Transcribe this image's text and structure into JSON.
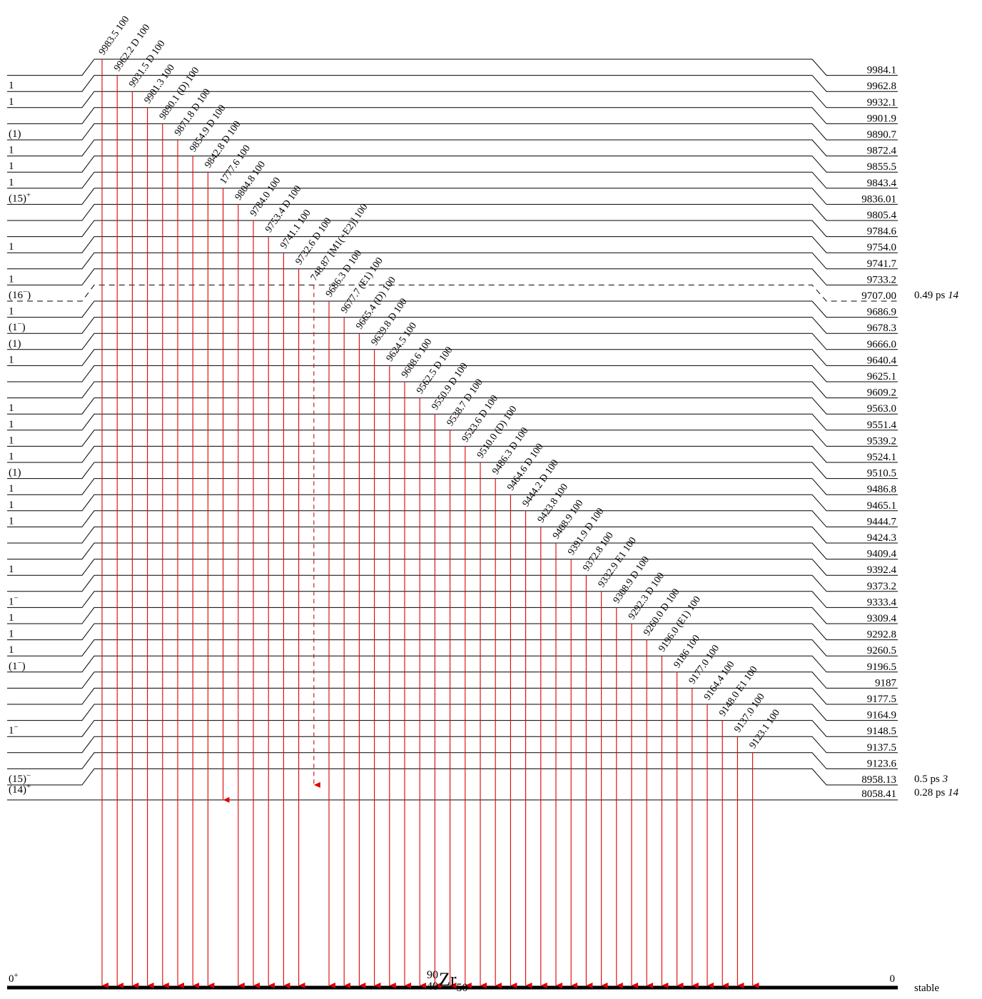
{
  "nuclide": {
    "mass": "90",
    "z": "40",
    "symbol": "Zr",
    "n": "50"
  },
  "levels": [
    {
      "energy": "9984.1",
      "spin": ""
    },
    {
      "energy": "9962.8",
      "spin": "1"
    },
    {
      "energy": "9932.1",
      "spin": "1"
    },
    {
      "energy": "9901.9",
      "spin": ""
    },
    {
      "energy": "9890.7",
      "spin": "(1)"
    },
    {
      "energy": "9872.4",
      "spin": "1"
    },
    {
      "energy": "9855.5",
      "spin": "1"
    },
    {
      "energy": "9843.4",
      "spin": "1"
    },
    {
      "energy": "9836.01",
      "spin": "(15)+"
    },
    {
      "energy": "9805.4",
      "spin": ""
    },
    {
      "energy": "9784.6",
      "spin": ""
    },
    {
      "energy": "9754.0",
      "spin": "1"
    },
    {
      "energy": "9741.7",
      "spin": ""
    },
    {
      "energy": "9733.2",
      "spin": "1"
    },
    {
      "energy": "9707.00",
      "spin": "(16−)",
      "halflife": "0.49 ps",
      "unc": "14",
      "dashed": true
    },
    {
      "energy": "9686.9",
      "spin": "1"
    },
    {
      "energy": "9678.3",
      "spin": "(1−)"
    },
    {
      "energy": "9666.0",
      "spin": "(1)"
    },
    {
      "energy": "9640.4",
      "spin": "1"
    },
    {
      "energy": "9625.1",
      "spin": ""
    },
    {
      "energy": "9609.2",
      "spin": ""
    },
    {
      "energy": "9563.0",
      "spin": "1"
    },
    {
      "energy": "9551.4",
      "spin": "1"
    },
    {
      "energy": "9539.2",
      "spin": "1"
    },
    {
      "energy": "9524.1",
      "spin": "1"
    },
    {
      "energy": "9510.5",
      "spin": "(1)"
    },
    {
      "energy": "9486.8",
      "spin": "1"
    },
    {
      "energy": "9465.1",
      "spin": "1"
    },
    {
      "energy": "9444.7",
      "spin": "1"
    },
    {
      "energy": "9424.3",
      "spin": ""
    },
    {
      "energy": "9409.4",
      "spin": ""
    },
    {
      "energy": "9392.4",
      "spin": "1"
    },
    {
      "energy": "9373.2",
      "spin": ""
    },
    {
      "energy": "9333.4",
      "spin": "1−"
    },
    {
      "energy": "9309.4",
      "spin": "1"
    },
    {
      "energy": "9292.8",
      "spin": "1"
    },
    {
      "energy": "9260.5",
      "spin": "1"
    },
    {
      "energy": "9196.5",
      "spin": "(1−)"
    },
    {
      "energy": "9187",
      "spin": ""
    },
    {
      "energy": "9177.5",
      "spin": ""
    },
    {
      "energy": "9164.9",
      "spin": ""
    },
    {
      "energy": "9148.5",
      "spin": "1−"
    },
    {
      "energy": "9137.5",
      "spin": ""
    },
    {
      "energy": "9123.6",
      "spin": ""
    },
    {
      "energy": "8958.13",
      "spin": "(15)−",
      "halflife": "0.5 ps",
      "unc": "3"
    }
  ],
  "lower_levels": [
    {
      "energy": "8058.41",
      "spin": "(14)+",
      "halflife": "0.28 ps",
      "unc": "14"
    },
    {
      "energy": "0",
      "spin": "0+",
      "halflife": "stable"
    }
  ],
  "transitions": [
    {
      "label": "9983.5 100",
      "from": 0,
      "to": "gs"
    },
    {
      "label": "9962.2 D 100",
      "from": 1,
      "to": "gs"
    },
    {
      "label": "9931.5 D 100",
      "from": 2,
      "to": "gs"
    },
    {
      "label": "9901.3 100",
      "from": 3,
      "to": "gs"
    },
    {
      "label": "9890.1 (D) 100",
      "from": 4,
      "to": "gs"
    },
    {
      "label": "9871.8 D 100",
      "from": 5,
      "to": "gs"
    },
    {
      "label": "9854.9 D 100",
      "from": 6,
      "to": "gs"
    },
    {
      "label": "9842.8 D 100",
      "from": 7,
      "to": "gs"
    },
    {
      "label": "1777.6 100",
      "from": 8,
      "to": "8058"
    },
    {
      "label": "9804.8 100",
      "from": 9,
      "to": "gs"
    },
    {
      "label": "9784.0 100",
      "from": 10,
      "to": "gs"
    },
    {
      "label": "9753.4 D 100",
      "from": 11,
      "to": "gs"
    },
    {
      "label": "9741.1 100",
      "from": 12,
      "to": "gs"
    },
    {
      "label": "9732.6 D 100",
      "from": 13,
      "to": "gs"
    },
    {
      "label": "748.87 [M1(+E2)] 100",
      "from": 14,
      "to": "8958",
      "dashed": true
    },
    {
      "label": "9686.3 D 100",
      "from": 15,
      "to": "gs"
    },
    {
      "label": "9677.7 (E1) 100",
      "from": 16,
      "to": "gs"
    },
    {
      "label": "9665.4 (D) 100",
      "from": 17,
      "to": "gs"
    },
    {
      "label": "9639.8 D 100",
      "from": 18,
      "to": "gs"
    },
    {
      "label": "9624.5 100",
      "from": 19,
      "to": "gs"
    },
    {
      "label": "9608.6 100",
      "from": 20,
      "to": "gs"
    },
    {
      "label": "9562.5 D 100",
      "from": 21,
      "to": "gs"
    },
    {
      "label": "9550.9 D 100",
      "from": 22,
      "to": "gs"
    },
    {
      "label": "9538.7 D 100",
      "from": 23,
      "to": "gs"
    },
    {
      "label": "9523.6 D 100",
      "from": 24,
      "to": "gs"
    },
    {
      "label": "9510.0 (D) 100",
      "from": 25,
      "to": "gs"
    },
    {
      "label": "9486.3 D 100",
      "from": 26,
      "to": "gs"
    },
    {
      "label": "9464.6 D 100",
      "from": 27,
      "to": "gs"
    },
    {
      "label": "9444.2 D 100",
      "from": 28,
      "to": "gs"
    },
    {
      "label": "9423.8 100",
      "from": 29,
      "to": "gs"
    },
    {
      "label": "9408.9 100",
      "from": 30,
      "to": "gs"
    },
    {
      "label": "9391.9 D 100",
      "from": 31,
      "to": "gs"
    },
    {
      "label": "9372.8 100",
      "from": 32,
      "to": "gs"
    },
    {
      "label": "9332.9 E1 100",
      "from": 33,
      "to": "gs"
    },
    {
      "label": "9308.9 D 100",
      "from": 34,
      "to": "gs"
    },
    {
      "label": "9292.3 D 100",
      "from": 35,
      "to": "gs"
    },
    {
      "label": "9260.0 D 100",
      "from": 36,
      "to": "gs"
    },
    {
      "label": "9196.0 (E1) 100",
      "from": 37,
      "to": "gs"
    },
    {
      "label": "9186 100",
      "from": 38,
      "to": "gs"
    },
    {
      "label": "9177.0 100",
      "from": 39,
      "to": "gs"
    },
    {
      "label": "9164.4 100",
      "from": 40,
      "to": "gs"
    },
    {
      "label": "9148.0 E1 100",
      "from": 41,
      "to": "gs"
    },
    {
      "label": "9137.0 100",
      "from": 42,
      "to": "gs"
    },
    {
      "label": "9123.1 100",
      "from": 43,
      "to": "gs"
    }
  ],
  "colors": {
    "gamma": "#e00000",
    "level": "#000000"
  }
}
